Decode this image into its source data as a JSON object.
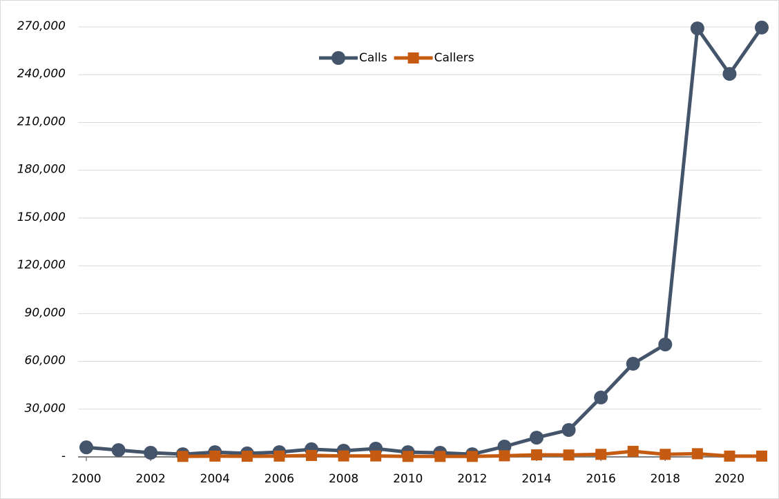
{
  "chart_data": {
    "type": "line",
    "x": [
      2000,
      2001,
      2002,
      2003,
      2004,
      2005,
      2006,
      2007,
      2008,
      2009,
      2010,
      2011,
      2012,
      2013,
      2014,
      2015,
      2016,
      2017,
      2018,
      2019,
      2020,
      2021
    ],
    "series": [
      {
        "name": "Calls",
        "color": "#44546a",
        "marker": "circle",
        "values": [
          6000,
          4300,
          2600,
          1700,
          3000,
          2200,
          3000,
          4800,
          3900,
          5200,
          3000,
          2600,
          1700,
          6500,
          12100,
          16900,
          37300,
          58500,
          70600,
          269100,
          240500,
          269600
        ]
      },
      {
        "name": "Callers",
        "color": "#c55a11",
        "marker": "square",
        "values": [
          null,
          null,
          null,
          300,
          500,
          400,
          500,
          900,
          600,
          600,
          300,
          300,
          300,
          700,
          1300,
          1200,
          1600,
          3500,
          1600,
          2000,
          500,
          500
        ]
      }
    ],
    "xlim": [
      2000,
      2021
    ],
    "xticks": [
      2000,
      2002,
      2004,
      2006,
      2008,
      2010,
      2012,
      2014,
      2016,
      2018,
      2020
    ],
    "ylim": [
      0,
      270000
    ],
    "yticks": [
      {
        "value": 0,
        "label": "-"
      },
      {
        "value": 30000,
        "label": "30,000"
      },
      {
        "value": 60000,
        "label": "60,000"
      },
      {
        "value": 90000,
        "label": "90,000"
      },
      {
        "value": 120000,
        "label": "120,000"
      },
      {
        "value": 150000,
        "label": "150,000"
      },
      {
        "value": 180000,
        "label": "180,000"
      },
      {
        "value": 210000,
        "label": "210,000"
      },
      {
        "value": 240000,
        "label": "240,000"
      },
      {
        "value": 270000,
        "label": "270,000"
      }
    ],
    "grid": true,
    "legend": "top"
  }
}
